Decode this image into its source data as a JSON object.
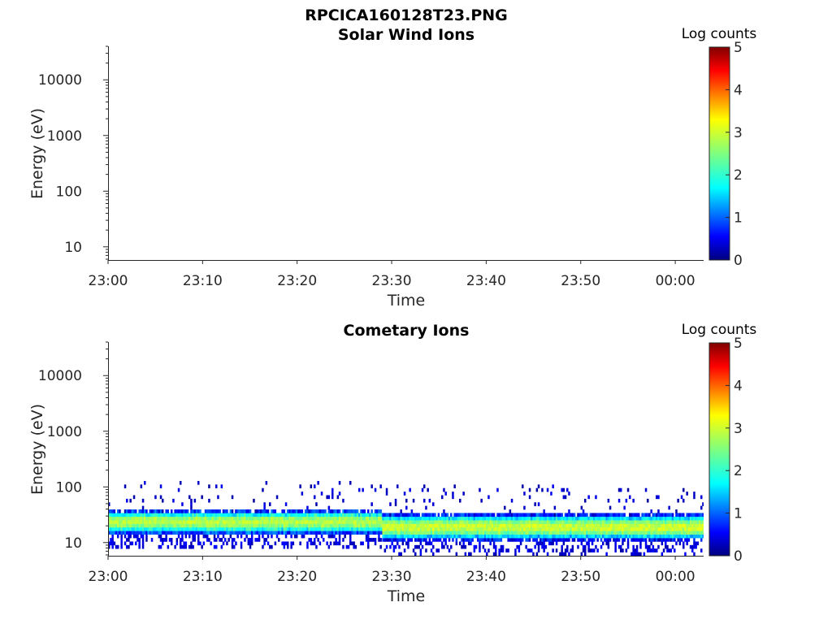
{
  "figure_title": "RPCICA160128T23.PNG",
  "colors": {
    "colormap": [
      "#00007f",
      "#0000ff",
      "#007fff",
      "#00ffff",
      "#7fff7f",
      "#ffff00",
      "#ff7f00",
      "#ff0000",
      "#7f0000"
    ],
    "axis": "#262626",
    "background": "#ffffff"
  },
  "chart_data": [
    {
      "type": "heatmap",
      "title": "Solar Wind Ions",
      "xlabel": "Time",
      "ylabel": "Energy (eV)",
      "x_tick_labels": [
        "23:00",
        "23:10",
        "23:20",
        "23:30",
        "23:40",
        "23:50",
        "00:00"
      ],
      "x_range_minutes": [
        0,
        63
      ],
      "y_scale": "log",
      "y_range": [
        5.8,
        40000
      ],
      "y_tick_values": [
        10,
        100,
        1000,
        10000
      ],
      "y_tick_labels": [
        "10",
        "100",
        "1000",
        "10000"
      ],
      "colorbar": {
        "title": "Log counts",
        "range": [
          0,
          5
        ],
        "tick_labels": [
          "0",
          "1",
          "2",
          "3",
          "4",
          "5"
        ]
      },
      "data_description": "empty",
      "bands": []
    },
    {
      "type": "heatmap",
      "title": "Cometary Ions",
      "xlabel": "Time",
      "ylabel": "Energy (eV)",
      "x_tick_labels": [
        "23:00",
        "23:10",
        "23:20",
        "23:30",
        "23:40",
        "23:50",
        "00:00"
      ],
      "x_range_minutes": [
        0,
        63
      ],
      "y_scale": "log",
      "y_range": [
        5.8,
        40000
      ],
      "y_tick_values": [
        10,
        100,
        1000,
        10000
      ],
      "y_tick_labels": [
        "10",
        "100",
        "1000",
        "10000"
      ],
      "colorbar": {
        "title": "Log counts",
        "range": [
          0,
          5
        ],
        "tick_labels": [
          "0",
          "1",
          "2",
          "3",
          "4",
          "5"
        ]
      },
      "bands": [
        {
          "t_start": 0,
          "t_end": 29,
          "e_low": 14,
          "e_high": 38,
          "e_peak": 24,
          "peak_log_counts": 2.8
        },
        {
          "t_start": 29,
          "t_end": 63,
          "e_low": 11,
          "e_high": 33,
          "e_peak": 19,
          "peak_log_counts": 2.9
        }
      ]
    }
  ]
}
